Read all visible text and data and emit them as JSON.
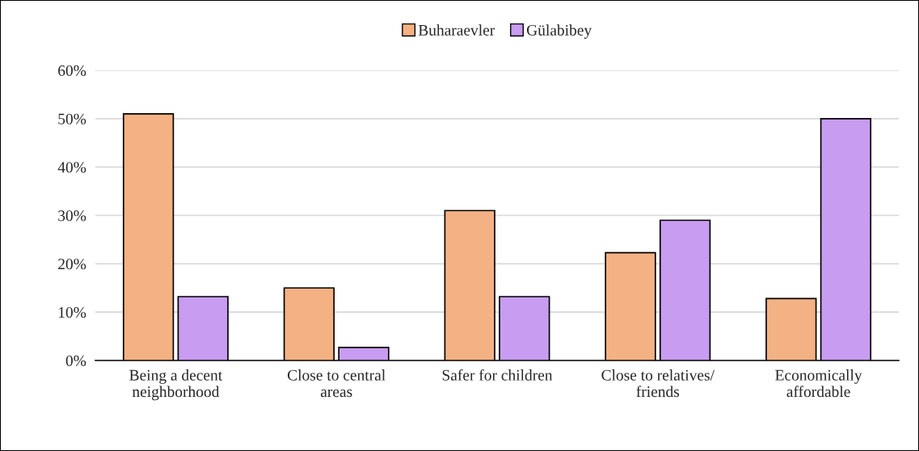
{
  "chart_data": {
    "type": "bar",
    "categories": [
      "Being a decent\nneighborhood",
      "Close to central\nareas",
      "Safer for children",
      "Close to relatives/\nfriends",
      "Economically\naffordable"
    ],
    "series": [
      {
        "name": "Buharaevler",
        "color": "#f4b183",
        "values": [
          51,
          15,
          31,
          22.3,
          12.8
        ]
      },
      {
        "name": "Gülabibey",
        "color": "#c89cf0",
        "values": [
          13.2,
          2.7,
          13.2,
          29,
          50
        ]
      }
    ],
    "ylim": [
      0,
      60
    ],
    "yticks": [
      {
        "value": 0,
        "label": "0%"
      },
      {
        "value": 10,
        "label": "10%"
      },
      {
        "value": 20,
        "label": "20%"
      },
      {
        "value": 30,
        "label": "30%"
      },
      {
        "value": 40,
        "label": "40%"
      },
      {
        "value": 50,
        "label": "50%"
      },
      {
        "value": 60,
        "label": "60%"
      }
    ],
    "grid": "y",
    "legend": "top"
  }
}
